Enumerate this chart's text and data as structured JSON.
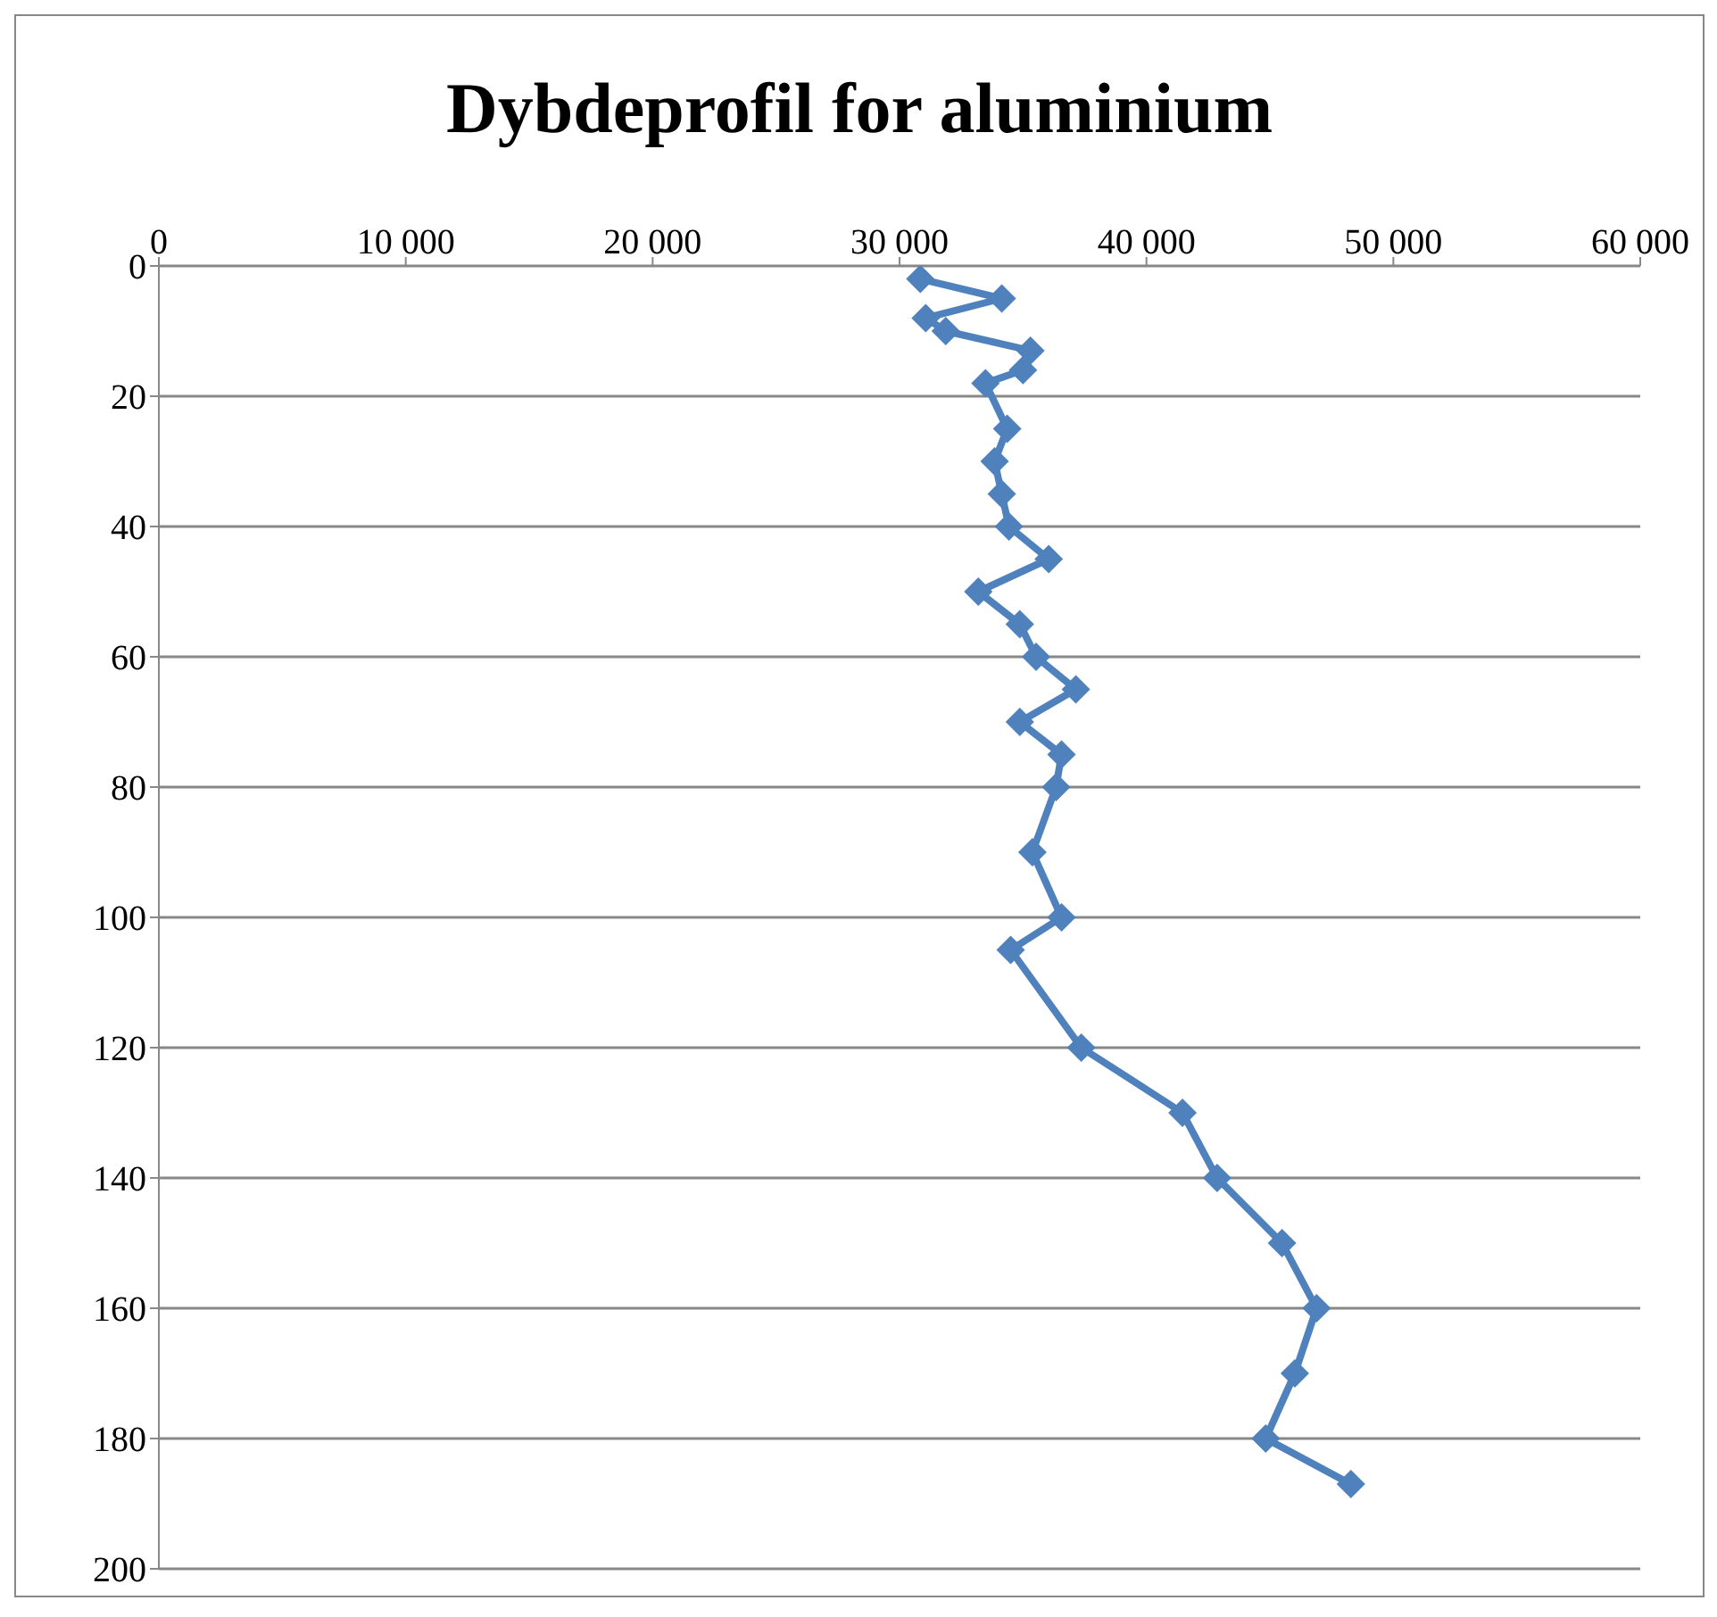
{
  "chart_data": {
    "type": "line",
    "title": "Dybdeprofil for aluminium",
    "orientation": "horizontal",
    "x": [
      2,
      5,
      8,
      10,
      13,
      16,
      18,
      25,
      30,
      35,
      40,
      45,
      50,
      55,
      60,
      65,
      70,
      75,
      80,
      90,
      100,
      105,
      120,
      130,
      140,
      150,
      160,
      170,
      180,
      187
    ],
    "series": [
      {
        "color": "#4f81bd",
        "values": [
          30840,
          34140,
          31060,
          31870,
          35300,
          35000,
          33480,
          34360,
          33850,
          34140,
          34430,
          36040,
          33190,
          34870,
          35530,
          37140,
          34870,
          36560,
          36340,
          35380,
          36560,
          34500,
          37360,
          41460,
          42860,
          45490,
          46890,
          46010,
          44830,
          48280
        ]
      }
    ],
    "xlim": [
      0,
      60000
    ],
    "xticks": [
      0,
      {
        "value": 10000,
        "label": "10 000"
      },
      {
        "value": 20000,
        "label": "20 000"
      },
      {
        "value": 30000,
        "label": "30 000"
      },
      {
        "value": 40000,
        "label": "40 000"
      },
      {
        "value": 50000,
        "label": "50 000"
      },
      {
        "value": 60000,
        "label": "60 000"
      }
    ],
    "ylim": [
      200,
      0
    ],
    "yticks": [
      0,
      20,
      40,
      60,
      80,
      100,
      120,
      140,
      160,
      180,
      200
    ],
    "grid": "y",
    "marker": "diamond",
    "line_style": "solid"
  }
}
